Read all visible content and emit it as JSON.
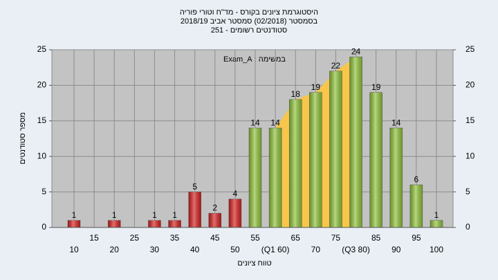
{
  "chart_data": {
    "type": "bar",
    "title": [
      "היסטוגרמת ציונים בקורס - מד\"ח וטורי פוריה",
      "בסמסטר (02/2018) סמסטר אביב 2018/19",
      "סטודנטים רשומים - 251"
    ],
    "annotation": "במשימה : Exam_A",
    "x_label": "טווח ציונים",
    "y_label": "מספר סטודנטים",
    "x": [
      10,
      15,
      20,
      25,
      30,
      35,
      40,
      45,
      50,
      55,
      60,
      65,
      70,
      75,
      80,
      85,
      90,
      95,
      100
    ],
    "values": [
      1,
      null,
      1,
      null,
      1,
      1,
      5,
      2,
      4,
      14,
      14,
      18,
      19,
      22,
      24,
      19,
      14,
      6,
      1
    ],
    "bar_colors": [
      "#d42020",
      null,
      "#d42020",
      null,
      "#d42020",
      "#d42020",
      "#d42020",
      "#d42020",
      "#d42020",
      "#8fc23a",
      "#8fc23a",
      "#8fc23a",
      "#8fc23a",
      "#8fc23a",
      "#8fc23a",
      "#8fc23a",
      "#8fc23a",
      "#8fc23a",
      "#8fc23a"
    ],
    "xticks": [
      10,
      15,
      20,
      25,
      30,
      35,
      40,
      45,
      50,
      55,
      {
        "value": 60,
        "label": "(Q1 60)"
      },
      65,
      70,
      75,
      {
        "value": 80,
        "label": "(Q3 80)"
      },
      85,
      90,
      95,
      100
    ],
    "quartiles": [
      60,
      80
    ],
    "quartile_color": "#f7c64a",
    "ylim": [
      0,
      25
    ],
    "yticks": [
      0,
      5,
      10,
      15,
      20,
      25
    ],
    "y2lim": [
      0,
      25
    ],
    "y2ticks": [
      0,
      5,
      10,
      15,
      20,
      25
    ],
    "grid": true
  }
}
